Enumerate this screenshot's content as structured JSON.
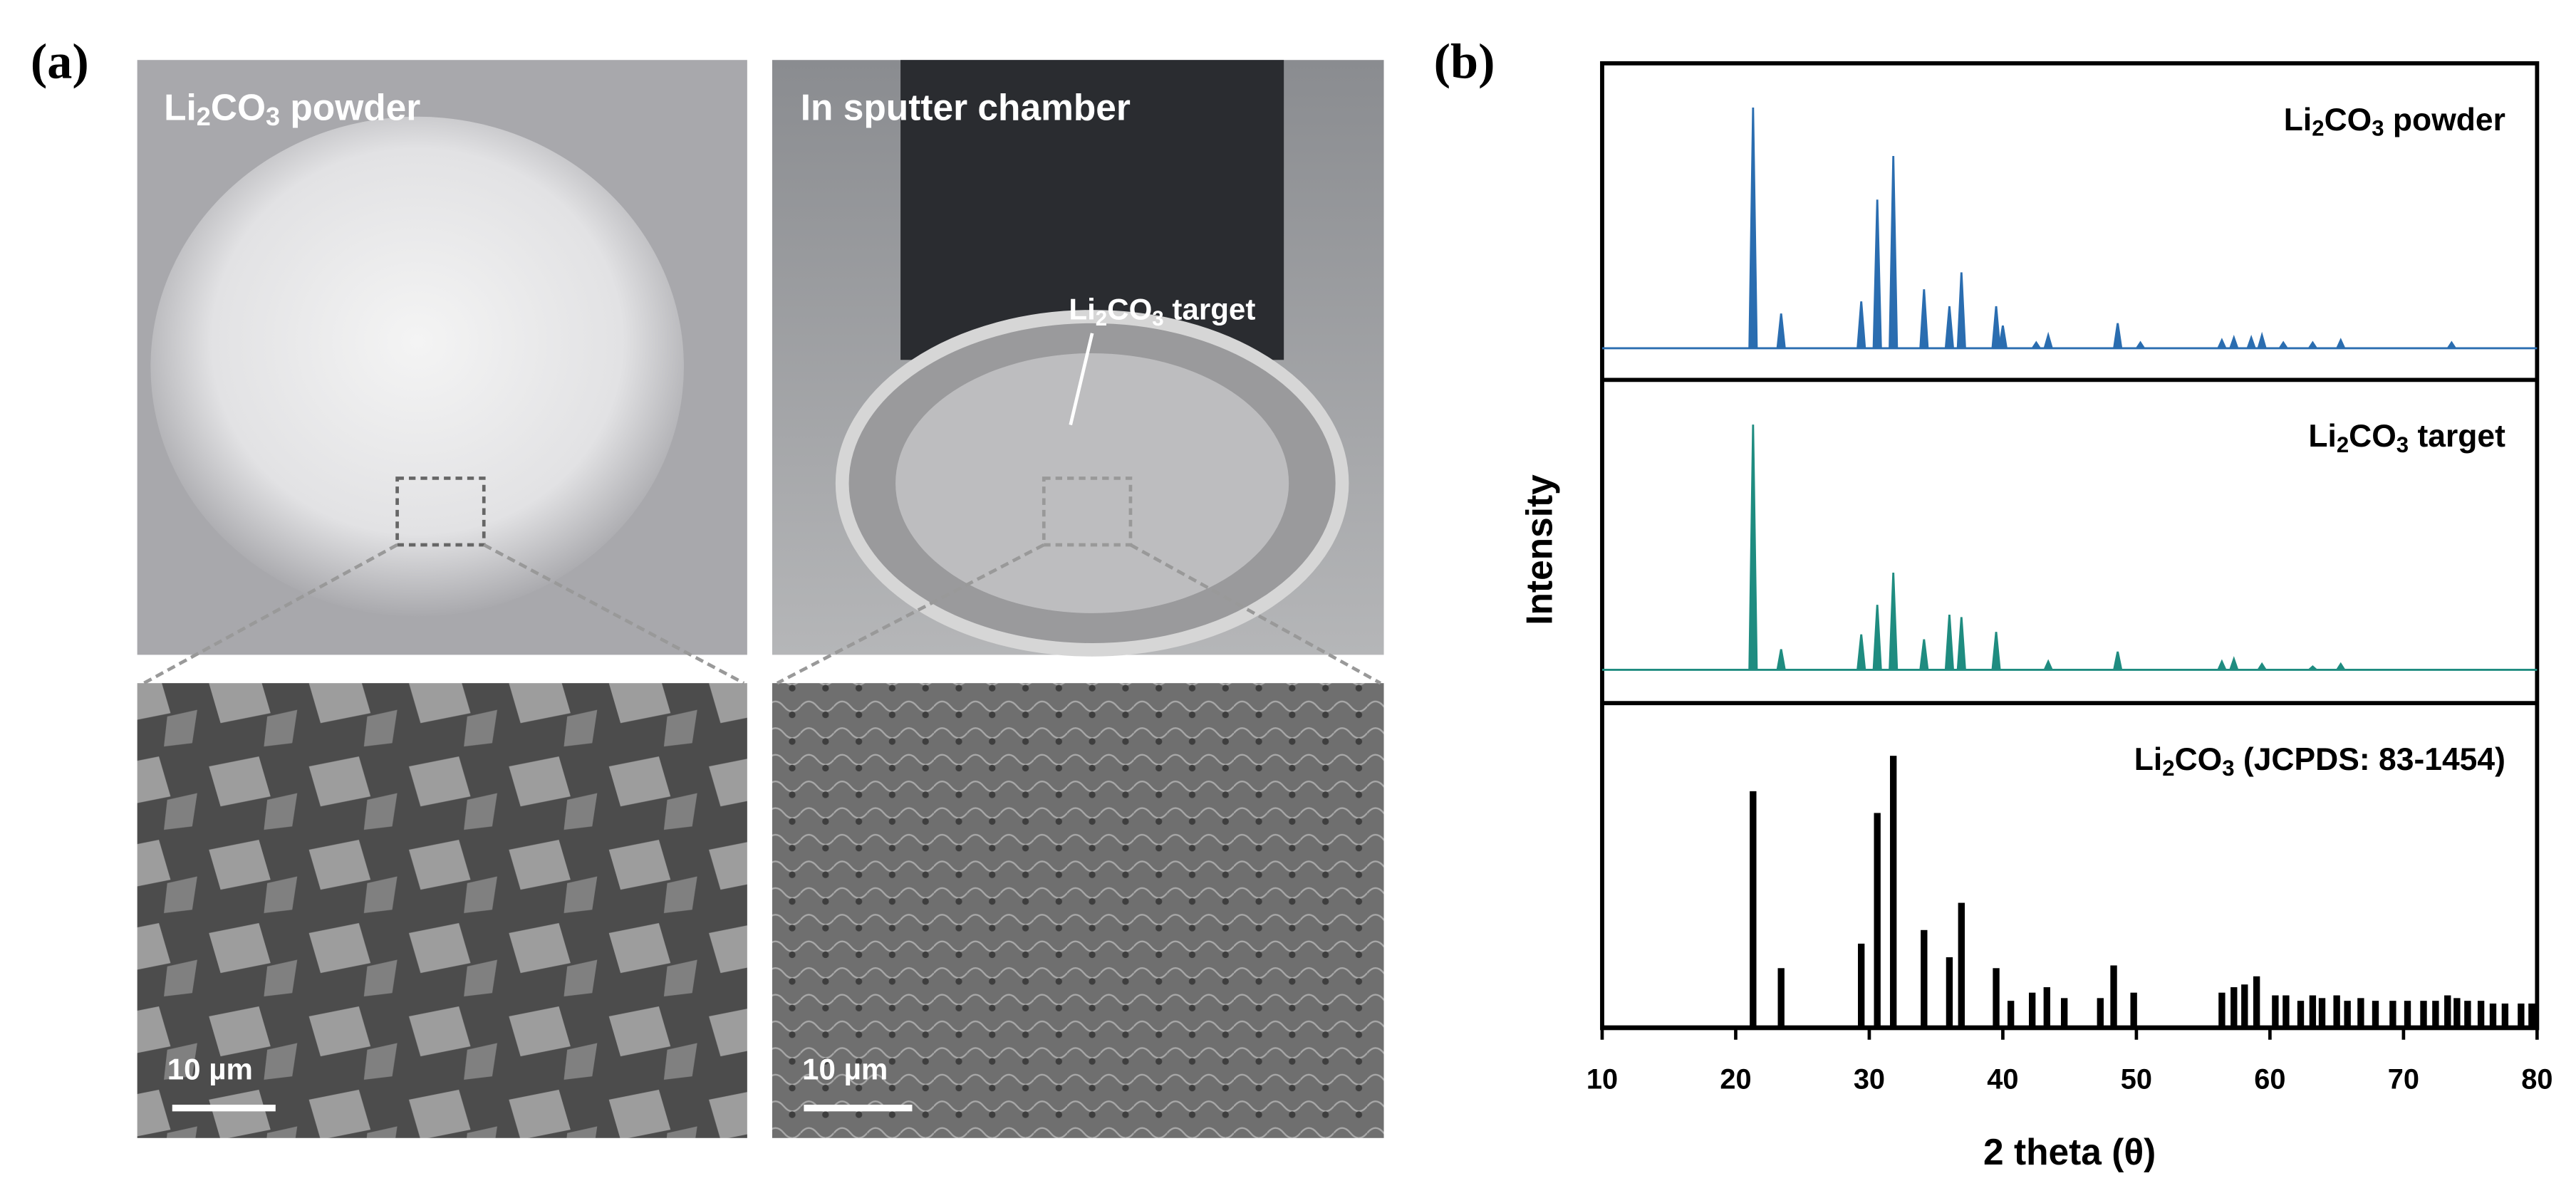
{
  "panel_a": {
    "label": "(a)",
    "photo_captions": [
      [
        "Li",
        "2",
        "CO",
        "3",
        " powder"
      ],
      [
        "In sputter chamber"
      ]
    ],
    "target_annotation": [
      "Li",
      "2",
      "CO",
      "3",
      " target"
    ],
    "scale_bars": [
      "10 µm",
      "10 µm"
    ]
  },
  "panel_b_label": "(b)",
  "chart_data": [
    {
      "type": "peak",
      "label": [
        "Li",
        "2",
        "CO",
        "3",
        " powder"
      ],
      "color": "#2a6db0",
      "xlim": [
        10,
        80
      ],
      "ylim": [
        0,
        110
      ],
      "x": [
        21.3,
        23.4,
        29.4,
        30.6,
        31.8,
        34.1,
        36.0,
        36.9,
        39.5,
        40.0,
        42.5,
        43.4,
        48.6,
        50.3,
        56.4,
        57.3,
        58.6,
        59.4,
        61.0,
        63.2,
        65.3,
        73.6
      ],
      "values": [
        100,
        15,
        20,
        62,
        80,
        25,
        18,
        32,
        18,
        10,
        3,
        6,
        11,
        3,
        4,
        5,
        5,
        6,
        3,
        3,
        4,
        3
      ]
    },
    {
      "type": "peak",
      "label": [
        "Li",
        "2",
        "CO",
        "3",
        " target"
      ],
      "color": "#1f8c80",
      "xlim": [
        10,
        80
      ],
      "ylim": [
        0,
        110
      ],
      "ylabel": "Intensity",
      "x": [
        21.3,
        23.4,
        29.4,
        30.6,
        31.8,
        34.1,
        36.0,
        36.9,
        39.5,
        43.4,
        48.6,
        56.4,
        57.3,
        59.4,
        63.2,
        65.3
      ],
      "values": [
        100,
        9,
        15,
        27,
        40,
        13,
        23,
        22,
        16,
        4,
        8,
        4,
        5,
        3,
        2,
        3
      ]
    },
    {
      "type": "stick",
      "label": [
        "Li",
        "2",
        "CO",
        "3",
        " (JCPDS: 83-1454)"
      ],
      "color": "#000000",
      "xlim": [
        10,
        80
      ],
      "ylim": [
        0,
        112
      ],
      "xlabel": "2 theta (θ)",
      "xticks": [
        10,
        20,
        30,
        40,
        50,
        60,
        70,
        80
      ],
      "x": [
        21.3,
        23.4,
        29.4,
        30.6,
        31.8,
        34.1,
        36.0,
        36.9,
        39.5,
        40.6,
        42.2,
        43.3,
        44.6,
        47.3,
        48.3,
        49.8,
        56.4,
        57.3,
        58.1,
        59.0,
        60.4,
        61.2,
        62.3,
        63.2,
        63.9,
        65.0,
        65.8,
        66.8,
        67.9,
        69.2,
        70.3,
        71.5,
        72.4,
        73.3,
        74.0,
        74.8,
        75.8,
        76.7,
        77.6,
        78.8,
        79.6
      ],
      "values": [
        87,
        22,
        31,
        79,
        100,
        36,
        26,
        46,
        22,
        10,
        13,
        15,
        11,
        11,
        23,
        13,
        13,
        15,
        16,
        19,
        12,
        12,
        10,
        12,
        11,
        12,
        10,
        11,
        10,
        10,
        10,
        10,
        10,
        12,
        11,
        10,
        10,
        9,
        9,
        9,
        9
      ]
    }
  ]
}
